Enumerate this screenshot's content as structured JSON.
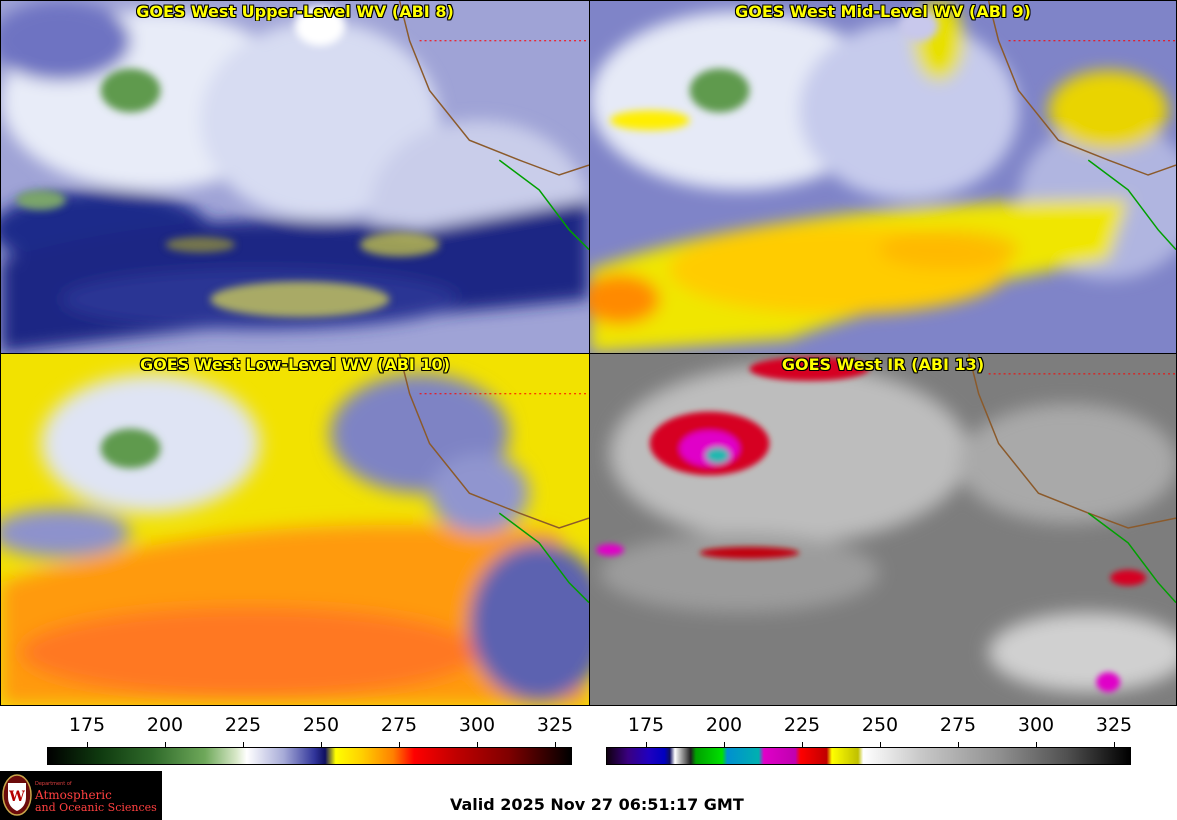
{
  "panels": [
    {
      "title": "GOES West Upper-Level WV (ABI 8)"
    },
    {
      "title": "GOES West Mid-Level WV (ABI 9)"
    },
    {
      "title": "GOES West Low-Level WV (ABI 10)"
    },
    {
      "title": "GOES West IR (ABI 13)"
    }
  ],
  "colorbars": [
    {
      "name": "water-vapor",
      "ticks": [
        "175",
        "200",
        "225",
        "250",
        "275",
        "300",
        "325"
      ]
    },
    {
      "name": "infrared",
      "ticks": [
        "175",
        "200",
        "225",
        "250",
        "275",
        "300",
        "325"
      ]
    }
  ],
  "logo": {
    "dept": "Department of",
    "name_line1": "Atmospheric",
    "name_line2": "and Oceanic Sciences"
  },
  "valid_time": "Valid 2025 Nov 27 06:51:17 GMT",
  "colors": {
    "title_text": "#ffff00",
    "state_borders": "#ff0000",
    "coastline_us": "#8b5a2b",
    "coastline_mexico": "#00a000"
  }
}
